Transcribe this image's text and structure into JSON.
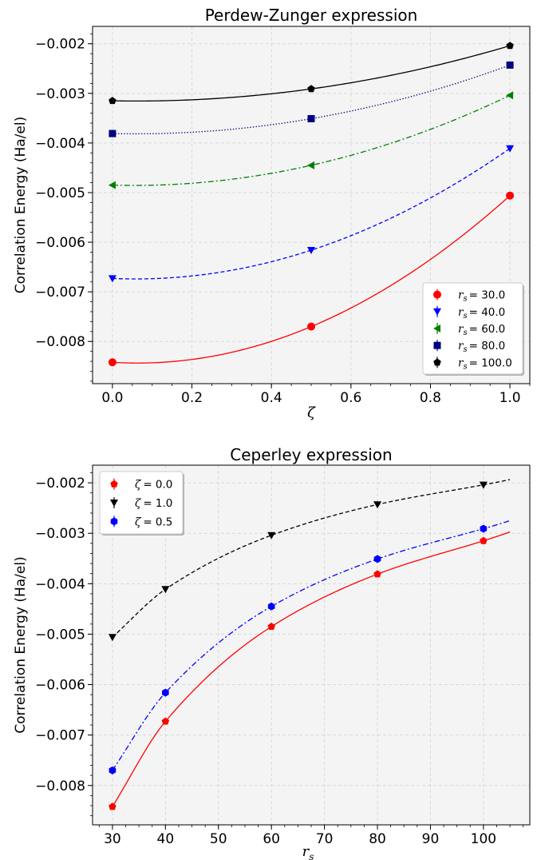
{
  "chart_data": [
    {
      "type": "scatter",
      "title": "Perdew-Zunger expression",
      "xlabel": "ζ",
      "ylabel": "Correlation Energy (Ha/el)",
      "xlim": [
        -0.05,
        1.05
      ],
      "ylim": [
        -0.00885,
        -0.00165
      ],
      "grid": true,
      "legend_position": "lower-right",
      "xticks": [
        0.0,
        0.2,
        0.4,
        0.6,
        0.8,
        1.0
      ],
      "xtick_labels": [
        "0.0",
        "0.2",
        "0.4",
        "0.6",
        "0.8",
        "1.0"
      ],
      "yticks": [
        -0.008,
        -0.007,
        -0.006,
        -0.005,
        -0.004,
        -0.003,
        -0.002
      ],
      "ytick_labels": [
        "−0.008",
        "−0.007",
        "−0.006",
        "−0.005",
        "−0.004",
        "−0.003",
        "−0.002"
      ],
      "series": [
        {
          "name": "r_s = 30.0",
          "legend_text": "= 30.0",
          "color": "#ff0000",
          "marker": "circle",
          "line": "solid",
          "x": [
            0.0,
            0.5,
            1.0
          ],
          "y": [
            -0.00842,
            -0.0077,
            -0.00506
          ]
        },
        {
          "name": "r_s = 40.0",
          "legend_text": "= 40.0",
          "color": "#0000ff",
          "marker": "triangle-down",
          "line": "dashed",
          "x": [
            0.0,
            0.5,
            1.0
          ],
          "y": [
            -0.00673,
            -0.00616,
            -0.00411
          ]
        },
        {
          "name": "r_s = 60.0",
          "legend_text": "= 60.0",
          "color": "#008000",
          "marker": "triangle-left",
          "line": "dashdot",
          "x": [
            0.0,
            0.5,
            1.0
          ],
          "y": [
            -0.00485,
            -0.00445,
            -0.00304
          ]
        },
        {
          "name": "r_s = 80.0",
          "legend_text": "= 80.0",
          "color": "#000080",
          "marker": "square",
          "line": "dotted",
          "x": [
            0.0,
            0.5,
            1.0
          ],
          "y": [
            -0.00381,
            -0.00351,
            -0.00243
          ]
        },
        {
          "name": "r_s = 100.0",
          "legend_text": "= 100.0",
          "color": "#000000",
          "marker": "pentagon",
          "line": "solid",
          "x": [
            0.0,
            0.5,
            1.0
          ],
          "y": [
            -0.00315,
            -0.00291,
            -0.00204
          ]
        }
      ]
    },
    {
      "type": "scatter",
      "title": "Ceperley expression",
      "xlabel": "r_s",
      "ylabel": "Correlation Energy (Ha/el)",
      "xlim": [
        26.25,
        108.75
      ],
      "ylim": [
        -0.00878,
        -0.00165
      ],
      "grid": true,
      "legend_position": "upper-left",
      "xticks": [
        30,
        40,
        50,
        60,
        70,
        80,
        90,
        100
      ],
      "xtick_labels": [
        "30",
        "40",
        "50",
        "60",
        "70",
        "80",
        "90",
        "100"
      ],
      "yticks": [
        -0.008,
        -0.007,
        -0.006,
        -0.005,
        -0.004,
        -0.003,
        -0.002
      ],
      "ytick_labels": [
        "−0.008",
        "−0.007",
        "−0.006",
        "−0.005",
        "−0.004",
        "−0.003",
        "−0.002"
      ],
      "series": [
        {
          "name": "ζ = 0.0",
          "legend_text": "= 0.0",
          "color": "#ff0000",
          "marker": "pentagon",
          "line": "solid",
          "x": [
            30,
            40,
            60,
            80,
            100
          ],
          "y": [
            -0.00842,
            -0.00673,
            -0.00485,
            -0.00381,
            -0.00315
          ]
        },
        {
          "name": "ζ = 1.0",
          "legend_text": "= 1.0",
          "color": "#000000",
          "marker": "triangle-down",
          "line": "dashed",
          "x": [
            30,
            40,
            60,
            80,
            100
          ],
          "y": [
            -0.00506,
            -0.00411,
            -0.00304,
            -0.00243,
            -0.00204
          ]
        },
        {
          "name": "ζ = 0.5",
          "legend_text": "= 0.5",
          "color": "#0000ff",
          "marker": "hexagon",
          "line": "dashdot",
          "x": [
            30,
            40,
            60,
            80,
            100
          ],
          "y": [
            -0.0077,
            -0.00616,
            -0.00445,
            -0.00351,
            -0.00291
          ]
        }
      ]
    }
  ]
}
